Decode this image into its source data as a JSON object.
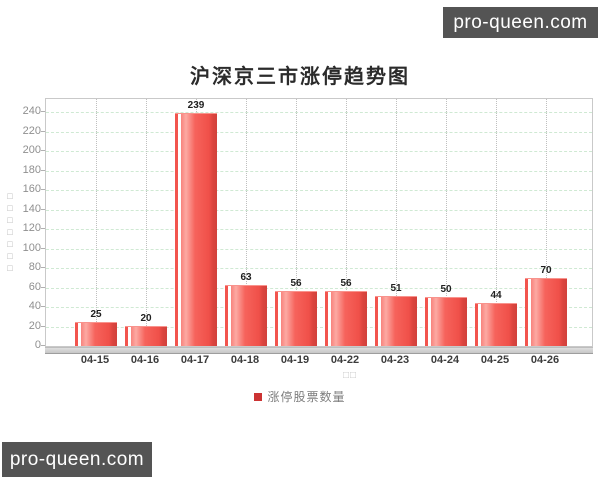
{
  "watermark": {
    "text": "pro-queen.com",
    "background": "#545454",
    "foreground": "#ffffff"
  },
  "chart_data": {
    "type": "bar",
    "title": "沪深京三市涨停趋势图",
    "categories": [
      "04-15",
      "04-16",
      "04-17",
      "04-18",
      "04-19",
      "04-22",
      "04-23",
      "04-24",
      "04-25",
      "04-26"
    ],
    "values": [
      25,
      20,
      239,
      63,
      56,
      56,
      51,
      50,
      44,
      70
    ],
    "series_name": "涨停股票数量",
    "xlabel": "□□",
    "ylabel": "□□□□□□□",
    "ylim": [
      0,
      240
    ],
    "yticks": [
      0,
      20,
      40,
      60,
      80,
      100,
      120,
      140,
      160,
      180,
      200,
      220,
      240
    ],
    "grid": true,
    "legend_position": "bottom",
    "bar_color": "#f0524c",
    "grid_color_h": "#cfe9d3",
    "grid_color_v": "#bfbfbf"
  },
  "legend": {
    "marker_color": "#cc3333",
    "label": "涨停股票数量"
  }
}
